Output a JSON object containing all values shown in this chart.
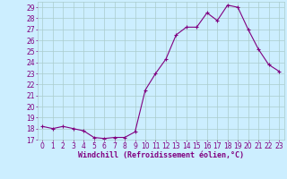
{
  "x": [
    0,
    1,
    2,
    3,
    4,
    5,
    6,
    7,
    8,
    9,
    10,
    11,
    12,
    13,
    14,
    15,
    16,
    17,
    18,
    19,
    20,
    21,
    22,
    23
  ],
  "y": [
    18.2,
    18.0,
    18.2,
    18.0,
    17.8,
    17.2,
    17.1,
    17.2,
    17.2,
    17.7,
    21.5,
    23.0,
    24.3,
    26.5,
    27.2,
    27.2,
    28.5,
    27.8,
    29.2,
    29.0,
    27.0,
    25.2,
    23.8,
    23.2
  ],
  "line_color": "#800080",
  "marker": "+",
  "marker_size": 3,
  "marker_linewidth": 0.8,
  "line_width": 0.8,
  "bg_color": "#cceeff",
  "grid_color": "#aacccc",
  "xlabel": "Windchill (Refroidissement éolien,°C)",
  "xlabel_fontsize": 6,
  "tick_fontsize": 5.5,
  "ylim": [
    17,
    29.5
  ],
  "yticks": [
    17,
    18,
    19,
    20,
    21,
    22,
    23,
    24,
    25,
    26,
    27,
    28,
    29
  ],
  "xlim": [
    -0.5,
    23.5
  ],
  "xticks": [
    0,
    1,
    2,
    3,
    4,
    5,
    6,
    7,
    8,
    9,
    10,
    11,
    12,
    13,
    14,
    15,
    16,
    17,
    18,
    19,
    20,
    21,
    22,
    23
  ]
}
